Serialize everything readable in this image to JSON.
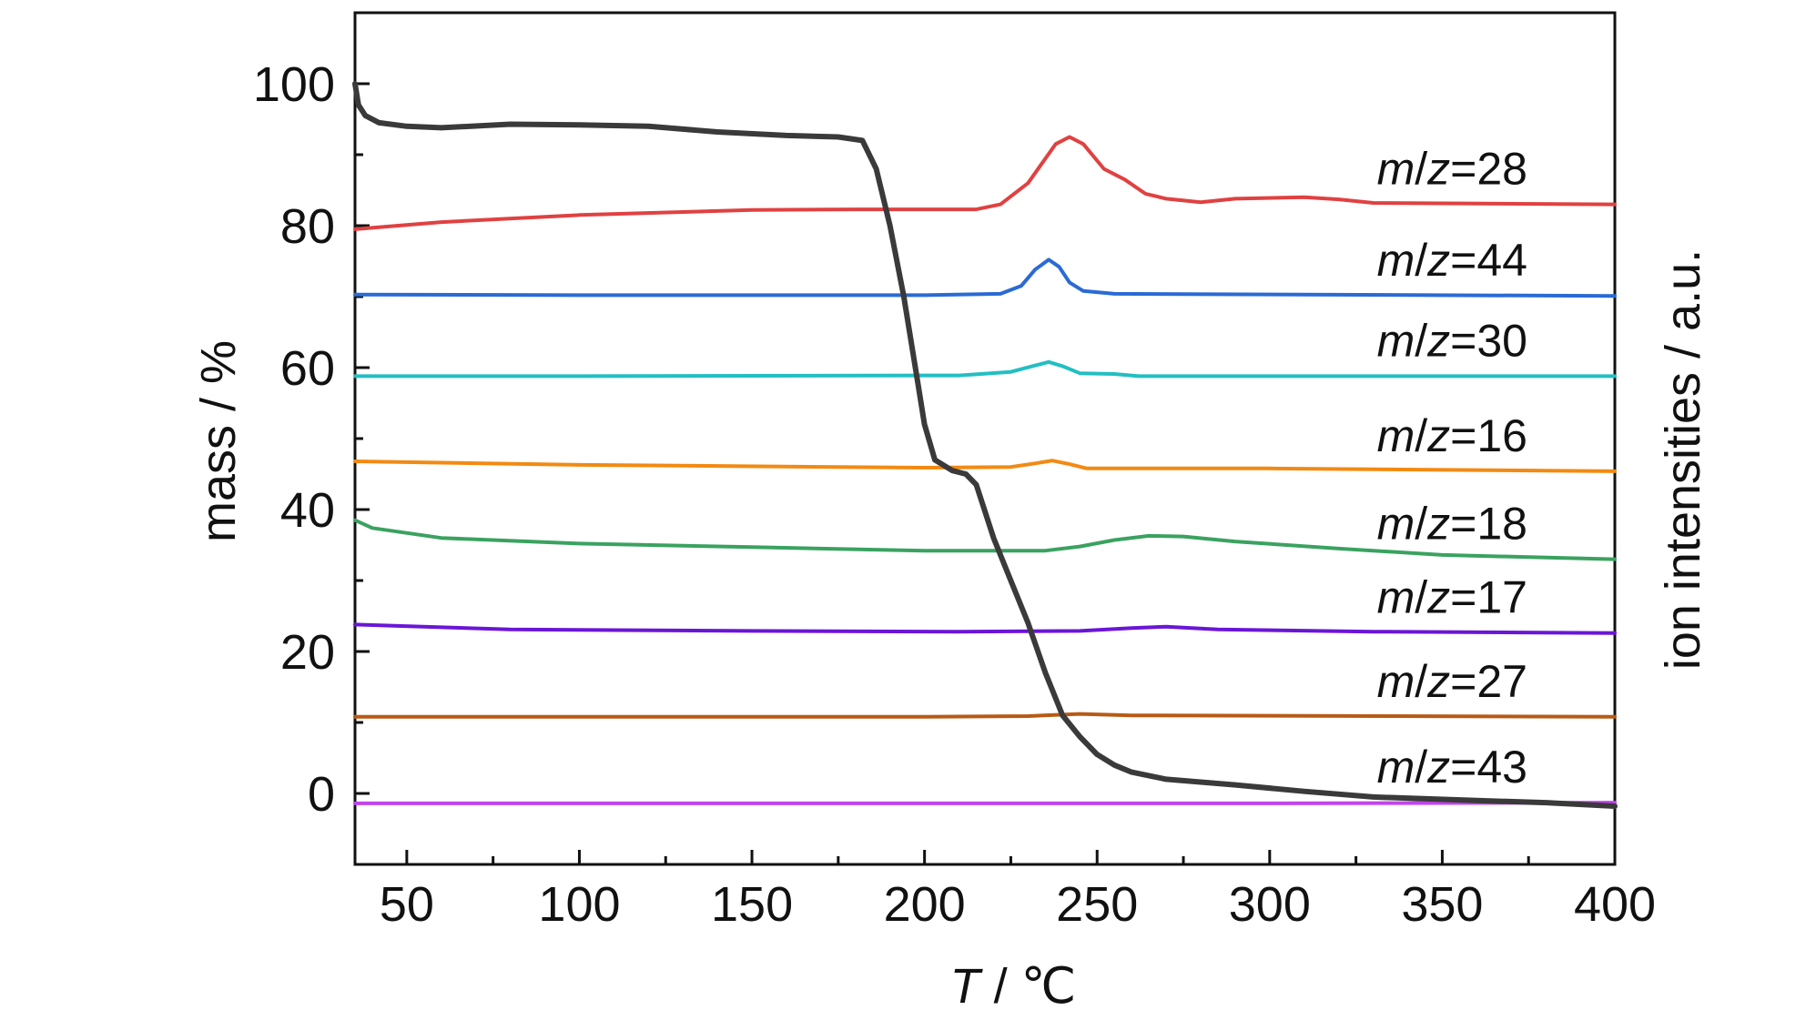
{
  "chart_data": {
    "type": "line",
    "xlabel_var": "T",
    "xlabel_unit": " / ℃",
    "ylabel_left": "mass / %",
    "ylabel_right": "ion intensities / a.u.",
    "xlim": [
      35,
      400
    ],
    "ylim": [
      -10,
      110
    ],
    "x_ticks": [
      50,
      100,
      150,
      200,
      250,
      300,
      350,
      400
    ],
    "y_ticks": [
      0,
      20,
      40,
      60,
      80,
      100
    ],
    "grid": false,
    "legend": "inline labels at right of each curve",
    "mass_series": {
      "name": "mass",
      "color": "#3a3a3a",
      "points": [
        [
          35,
          100
        ],
        [
          36,
          97
        ],
        [
          38,
          95.5
        ],
        [
          42,
          94.5
        ],
        [
          50,
          94
        ],
        [
          60,
          93.8
        ],
        [
          80,
          94.3
        ],
        [
          100,
          94.2
        ],
        [
          120,
          94
        ],
        [
          140,
          93.2
        ],
        [
          160,
          92.7
        ],
        [
          175,
          92.5
        ],
        [
          182,
          92
        ],
        [
          186,
          88
        ],
        [
          190,
          80
        ],
        [
          194,
          70
        ],
        [
          198,
          58
        ],
        [
          200,
          52
        ],
        [
          203,
          47
        ],
        [
          208,
          45.5
        ],
        [
          212,
          45
        ],
        [
          215,
          43.5
        ],
        [
          220,
          36
        ],
        [
          225,
          30
        ],
        [
          230,
          24
        ],
        [
          235,
          17
        ],
        [
          240,
          11
        ],
        [
          245,
          8
        ],
        [
          250,
          5.5
        ],
        [
          255,
          4
        ],
        [
          260,
          3
        ],
        [
          270,
          2
        ],
        [
          290,
          1.2
        ],
        [
          310,
          0.3
        ],
        [
          330,
          -0.5
        ],
        [
          360,
          -1
        ],
        [
          380,
          -1.3
        ],
        [
          400,
          -1.8
        ]
      ]
    },
    "ion_series": [
      {
        "name": "28",
        "color": "#e04141",
        "points": [
          [
            35,
            79.5
          ],
          [
            60,
            80.5
          ],
          [
            100,
            81.5
          ],
          [
            150,
            82.2
          ],
          [
            180,
            82.3
          ],
          [
            215,
            82.3
          ],
          [
            222,
            83
          ],
          [
            230,
            86
          ],
          [
            238,
            91.5
          ],
          [
            242,
            92.5
          ],
          [
            246,
            91.5
          ],
          [
            252,
            88
          ],
          [
            258,
            86.5
          ],
          [
            264,
            84.5
          ],
          [
            270,
            83.8
          ],
          [
            280,
            83.3
          ],
          [
            290,
            83.8
          ],
          [
            310,
            84
          ],
          [
            320,
            83.7
          ],
          [
            330,
            83.2
          ],
          [
            400,
            83
          ]
        ]
      },
      {
        "name": "44",
        "color": "#2a6ad4",
        "points": [
          [
            35,
            70.3
          ],
          [
            100,
            70.2
          ],
          [
            200,
            70.2
          ],
          [
            222,
            70.4
          ],
          [
            228,
            71.5
          ],
          [
            232,
            73.8
          ],
          [
            236,
            75.2
          ],
          [
            239,
            74.2
          ],
          [
            242,
            72
          ],
          [
            246,
            70.8
          ],
          [
            255,
            70.4
          ],
          [
            400,
            70.1
          ]
        ]
      },
      {
        "name": "30",
        "color": "#22bfc2",
        "points": [
          [
            35,
            58.8
          ],
          [
            100,
            58.8
          ],
          [
            210,
            58.9
          ],
          [
            225,
            59.4
          ],
          [
            232,
            60.3
          ],
          [
            236,
            60.8
          ],
          [
            240,
            60.2
          ],
          [
            245,
            59.2
          ],
          [
            255,
            59.1
          ],
          [
            262,
            58.8
          ],
          [
            400,
            58.8
          ]
        ]
      },
      {
        "name": "16",
        "color": "#f28a12",
        "points": [
          [
            35,
            46.8
          ],
          [
            100,
            46.3
          ],
          [
            200,
            45.9
          ],
          [
            225,
            46
          ],
          [
            232,
            46.5
          ],
          [
            237,
            46.9
          ],
          [
            242,
            46.4
          ],
          [
            247,
            45.8
          ],
          [
            300,
            45.8
          ],
          [
            400,
            45.4
          ]
        ]
      },
      {
        "name": "18",
        "color": "#3aa260",
        "points": [
          [
            35,
            38.5
          ],
          [
            40,
            37.4
          ],
          [
            60,
            36
          ],
          [
            100,
            35.2
          ],
          [
            150,
            34.7
          ],
          [
            200,
            34.2
          ],
          [
            235,
            34.2
          ],
          [
            245,
            34.8
          ],
          [
            255,
            35.7
          ],
          [
            265,
            36.3
          ],
          [
            275,
            36.2
          ],
          [
            290,
            35.5
          ],
          [
            320,
            34.5
          ],
          [
            350,
            33.6
          ],
          [
            400,
            33
          ]
        ]
      },
      {
        "name": "17",
        "color": "#6a16d6",
        "points": [
          [
            35,
            23.8
          ],
          [
            80,
            23.1
          ],
          [
            150,
            22.9
          ],
          [
            210,
            22.8
          ],
          [
            245,
            22.9
          ],
          [
            260,
            23.3
          ],
          [
            270,
            23.5
          ],
          [
            285,
            23.1
          ],
          [
            330,
            22.8
          ],
          [
            400,
            22.6
          ]
        ]
      },
      {
        "name": "27",
        "color": "#b85a15",
        "points": [
          [
            35,
            10.8
          ],
          [
            200,
            10.8
          ],
          [
            230,
            10.9
          ],
          [
            245,
            11.2
          ],
          [
            260,
            11
          ],
          [
            400,
            10.8
          ]
        ]
      },
      {
        "name": "43",
        "color": "#c244ec",
        "points": [
          [
            35,
            -1.4
          ],
          [
            200,
            -1.4
          ],
          [
            300,
            -1.4
          ],
          [
            400,
            -1.3
          ]
        ]
      }
    ],
    "series_labels": [
      {
        "prefix_m": "m",
        "slash": "/",
        "prefix_z": "z",
        "eq": "=28"
      },
      {
        "prefix_m": "m",
        "slash": "/",
        "prefix_z": "z",
        "eq": "=44"
      },
      {
        "prefix_m": "m",
        "slash": "/",
        "prefix_z": "z",
        "eq": "=30"
      },
      {
        "prefix_m": "m",
        "slash": "/",
        "prefix_z": "z",
        "eq": "=16"
      },
      {
        "prefix_m": "m",
        "slash": "/",
        "prefix_z": "z",
        "eq": "=18"
      },
      {
        "prefix_m": "m",
        "slash": "/",
        "prefix_z": "z",
        "eq": "=17"
      },
      {
        "prefix_m": "m",
        "slash": "/",
        "prefix_z": "z",
        "eq": "=27"
      },
      {
        "prefix_m": "m",
        "slash": "/",
        "prefix_z": "z",
        "eq": "=43"
      }
    ]
  }
}
